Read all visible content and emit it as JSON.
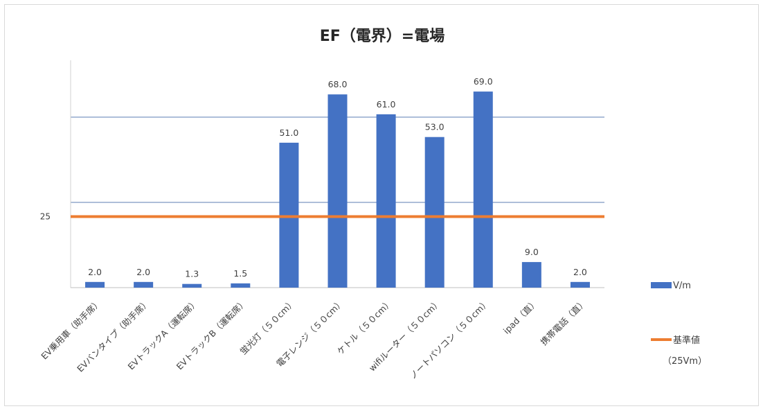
{
  "chart_data": {
    "type": "bar",
    "title": "EF（電界）=電場",
    "categories": [
      "EV乗用車（助手席）",
      "EVバンタイプ（助手席）",
      "EVトラックA（運転席）",
      "EVトラックB（運転席）",
      "蛍光灯（５０cm）",
      "電子レンジ（５０cm）",
      "ケトル（５０cm）",
      "wifiルーター（５０cm）",
      "ノートパソコン（５０cm）",
      "ipad（直）",
      "携帯電話（直）"
    ],
    "series": [
      {
        "name": "V/m",
        "values": [
          2.0,
          2.0,
          1.3,
          1.5,
          51.0,
          68.0,
          61.0,
          53.0,
          69.0,
          9.0,
          2.0
        ],
        "labels": [
          "2.0",
          "2.0",
          "1.3",
          "1.5",
          "51.0",
          "68.0",
          "61.0",
          "53.0",
          "69.0",
          "9.0",
          "2.0"
        ],
        "color": "#4472c4"
      }
    ],
    "reference_line": {
      "name": "基準値",
      "note": "（25Vm）",
      "value": 25,
      "color": "#ed7d31"
    },
    "y_tick_labels": [
      {
        "value": 25,
        "label": "25"
      }
    ],
    "gridlines_at": [
      30,
      60
    ],
    "ylim": [
      0,
      80
    ],
    "grid": true,
    "legend_position": "right"
  }
}
